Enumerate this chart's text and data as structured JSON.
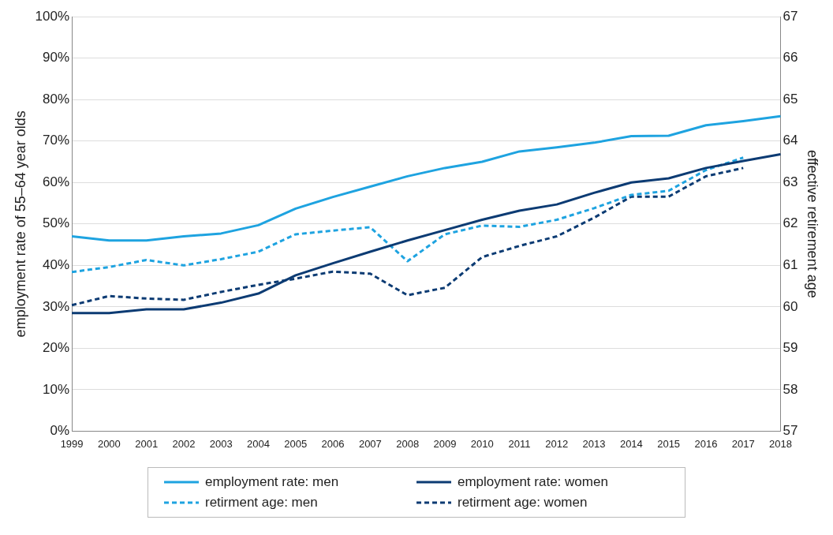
{
  "chart_data": {
    "type": "line",
    "categories": [
      "1999",
      "2000",
      "2001",
      "2002",
      "2003",
      "2004",
      "2005",
      "2006",
      "2007",
      "2008",
      "2009",
      "2010",
      "2011",
      "2012",
      "2013",
      "2014",
      "2015",
      "2016",
      "2017",
      "2018"
    ],
    "ylabel": "employment rate of 55–64 year olds",
    "y2label": "effective retirement age",
    "ylim": [
      0,
      100
    ],
    "yticks": [
      {
        "value": 0,
        "label": "0%"
      },
      {
        "value": 10,
        "label": "10%"
      },
      {
        "value": 20,
        "label": "20%"
      },
      {
        "value": 30,
        "label": "30%"
      },
      {
        "value": 40,
        "label": "40%"
      },
      {
        "value": 50,
        "label": "50%"
      },
      {
        "value": 60,
        "label": "60%"
      },
      {
        "value": 70,
        "label": "70%"
      },
      {
        "value": 80,
        "label": "80%"
      },
      {
        "value": 90,
        "label": "90%"
      },
      {
        "value": 100,
        "label": "100%"
      }
    ],
    "y2lim": [
      57,
      67
    ],
    "y2ticks": [
      57,
      58,
      59,
      60,
      61,
      62,
      63,
      64,
      65,
      66,
      67
    ],
    "grid": "y",
    "legend": "bottom",
    "marker": "none",
    "series": [
      {
        "name": "employment rate: men",
        "color": "#1ea3e0",
        "line_style": "solid",
        "values": [
          47,
          46,
          46,
          47,
          47.7,
          49.7,
          53.7,
          56.5,
          59,
          61.5,
          63.5,
          65,
          67.5,
          68.5,
          69.6,
          71.2,
          71.3,
          73.8,
          74.8,
          76
        ]
      },
      {
        "name": "employment rate: women",
        "color": "#0c3b73",
        "line_style": "solid",
        "values": [
          28.5,
          28.5,
          29.4,
          29.4,
          31,
          33.2,
          37.6,
          40.5,
          43.3,
          46,
          48.5,
          51,
          53.2,
          54.7,
          57.5,
          60,
          61,
          63.5,
          65.2,
          66.8
        ]
      },
      {
        "name": "retirment age: men",
        "color": "#1ea3e0",
        "line_style": "dashed",
        "axis": "y2",
        "values": [
          60.84,
          60.96,
          61.13,
          61.0,
          61.15,
          61.33,
          61.75,
          61.84,
          61.92,
          61.1,
          61.75,
          61.96,
          61.93,
          62.1,
          62.38,
          62.7,
          62.8,
          63.3,
          63.6,
          null
        ]
      },
      {
        "name": "retirment age: women",
        "color": "#0c3b73",
        "line_style": "dashed",
        "axis": "y2",
        "values": [
          60.04,
          60.26,
          60.2,
          60.17,
          60.36,
          60.53,
          60.68,
          60.85,
          60.8,
          60.28,
          60.46,
          61.2,
          61.47,
          61.7,
          62.15,
          62.66,
          62.66,
          63.15,
          63.35,
          null
        ]
      }
    ]
  }
}
